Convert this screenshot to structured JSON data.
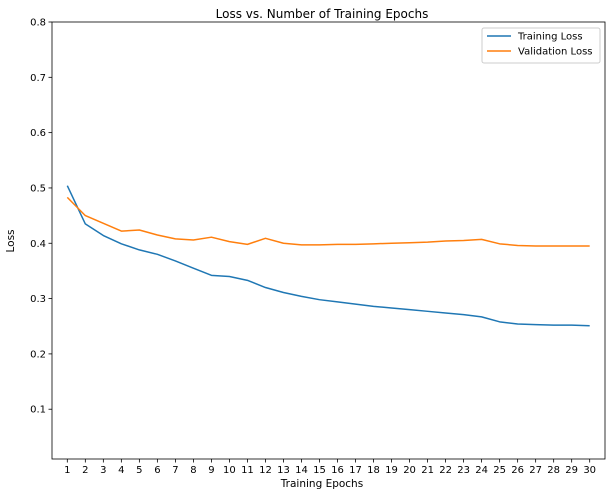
{
  "chart_data": {
    "type": "line",
    "title": "Loss vs. Number of Training Epochs",
    "xlabel": "Training Epochs",
    "ylabel": "Loss",
    "x": [
      1,
      2,
      3,
      4,
      5,
      6,
      7,
      8,
      9,
      10,
      11,
      12,
      13,
      14,
      15,
      16,
      17,
      18,
      19,
      20,
      21,
      22,
      23,
      24,
      25,
      26,
      27,
      28,
      29,
      30
    ],
    "ylim": [
      0.01,
      0.8
    ],
    "yticks": [
      "0.1",
      "0.2",
      "0.3",
      "0.4",
      "0.5",
      "0.6",
      "0.7",
      "0.8"
    ],
    "xticks": [
      "1",
      "2",
      "3",
      "4",
      "5",
      "6",
      "7",
      "8",
      "9",
      "10",
      "11",
      "12",
      "13",
      "14",
      "15",
      "16",
      "17",
      "18",
      "19",
      "20",
      "21",
      "22",
      "23",
      "24",
      "25",
      "26",
      "27",
      "28",
      "29",
      "30"
    ],
    "grid": false,
    "legend": "top-right",
    "series": [
      {
        "name": "Training Loss",
        "color": "#1f77b4",
        "values": [
          0.504,
          0.435,
          0.414,
          0.399,
          0.388,
          0.38,
          0.368,
          0.355,
          0.342,
          0.34,
          0.333,
          0.32,
          0.311,
          0.304,
          0.298,
          0.294,
          0.29,
          0.286,
          0.283,
          0.28,
          0.277,
          0.274,
          0.271,
          0.267,
          0.258,
          0.254,
          0.253,
          0.252,
          0.252,
          0.251
        ]
      },
      {
        "name": "Validation Loss",
        "color": "#ff7f0e",
        "values": [
          0.483,
          0.45,
          0.436,
          0.422,
          0.424,
          0.415,
          0.408,
          0.406,
          0.411,
          0.403,
          0.398,
          0.409,
          0.4,
          0.397,
          0.397,
          0.398,
          0.398,
          0.399,
          0.4,
          0.401,
          0.402,
          0.404,
          0.405,
          0.407,
          0.399,
          0.396,
          0.395,
          0.395,
          0.395,
          0.395
        ]
      }
    ]
  }
}
